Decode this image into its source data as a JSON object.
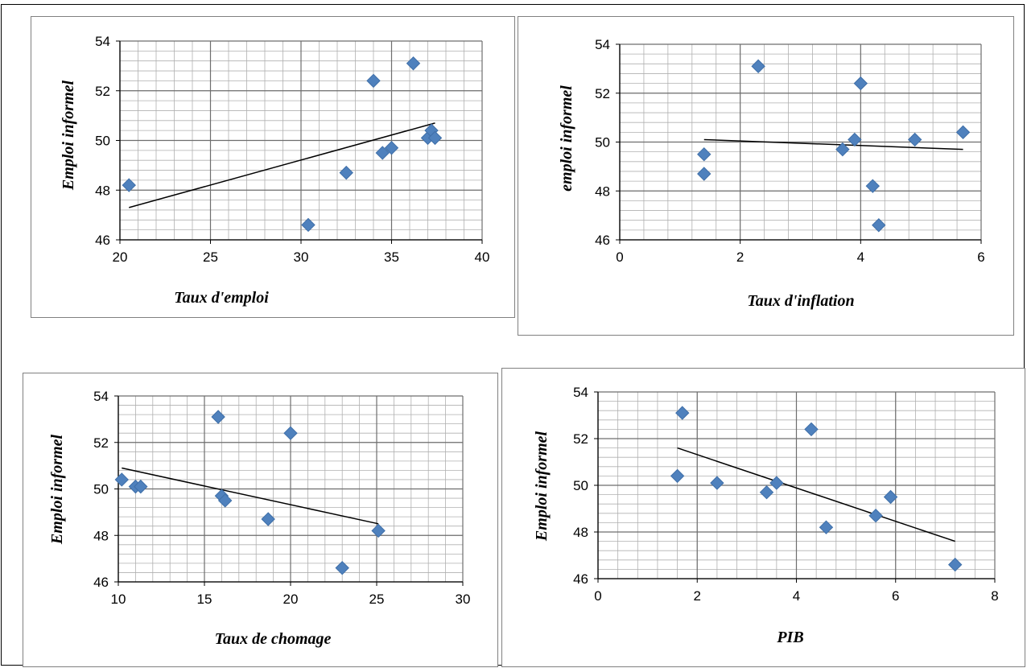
{
  "chart_data": [
    {
      "type": "scatter",
      "xlabel": "Taux d'emploi",
      "ylabel": "Emploi informel",
      "xlim": [
        20,
        40
      ],
      "ylim": [
        46,
        54
      ],
      "xticks": [
        20,
        25,
        30,
        35,
        40
      ],
      "yticks": [
        46,
        48,
        50,
        52,
        54
      ],
      "grid": true,
      "marker_color": "#4f81bd",
      "points": [
        [
          20.5,
          48.2
        ],
        [
          30.4,
          46.6
        ],
        [
          32.5,
          48.7
        ],
        [
          34.0,
          52.4
        ],
        [
          34.5,
          49.5
        ],
        [
          35.0,
          49.7
        ],
        [
          36.2,
          53.1
        ],
        [
          37.0,
          50.1
        ],
        [
          37.2,
          50.4
        ],
        [
          37.4,
          50.1
        ]
      ],
      "trendline": [
        [
          20.5,
          47.3
        ],
        [
          37.4,
          50.7
        ]
      ]
    },
    {
      "type": "scatter",
      "xlabel": "Taux d'inflation",
      "ylabel": "emploi informel",
      "xlim": [
        0,
        6
      ],
      "ylim": [
        46,
        54
      ],
      "xticks": [
        0,
        2,
        4,
        6
      ],
      "yticks": [
        46,
        48,
        50,
        52,
        54
      ],
      "grid": true,
      "marker_color": "#4f81bd",
      "points": [
        [
          1.4,
          49.5
        ],
        [
          1.4,
          48.7
        ],
        [
          2.3,
          53.1
        ],
        [
          3.7,
          49.7
        ],
        [
          3.9,
          50.1
        ],
        [
          4.0,
          52.4
        ],
        [
          4.2,
          48.2
        ],
        [
          4.3,
          46.6
        ],
        [
          4.9,
          50.1
        ],
        [
          5.7,
          50.4
        ]
      ],
      "trendline": [
        [
          1.4,
          50.1
        ],
        [
          5.7,
          49.7
        ]
      ]
    },
    {
      "type": "scatter",
      "xlabel": "Taux de chomage",
      "ylabel": "Emploi informel",
      "xlim": [
        10,
        30
      ],
      "ylim": [
        46,
        54
      ],
      "xticks": [
        10,
        15,
        20,
        25,
        30
      ],
      "yticks": [
        46,
        48,
        50,
        52,
        54
      ],
      "grid": true,
      "marker_color": "#4f81bd",
      "points": [
        [
          10.2,
          50.4
        ],
        [
          11.0,
          50.1
        ],
        [
          11.3,
          50.1
        ],
        [
          15.8,
          53.1
        ],
        [
          16.0,
          49.7
        ],
        [
          16.2,
          49.5
        ],
        [
          18.7,
          48.7
        ],
        [
          20.0,
          52.4
        ],
        [
          23.0,
          46.6
        ],
        [
          25.1,
          48.2
        ]
      ],
      "trendline": [
        [
          10.2,
          50.9
        ],
        [
          25.1,
          48.5
        ]
      ]
    },
    {
      "type": "scatter",
      "xlabel": "PIB",
      "ylabel": "Emploi informel",
      "xlim": [
        0,
        8
      ],
      "ylim": [
        46,
        54
      ],
      "xticks": [
        0,
        2,
        4,
        6,
        8
      ],
      "yticks": [
        46,
        48,
        50,
        52,
        54
      ],
      "grid": true,
      "marker_color": "#4f81bd",
      "points": [
        [
          1.6,
          50.4
        ],
        [
          1.7,
          53.1
        ],
        [
          2.4,
          50.1
        ],
        [
          3.4,
          49.7
        ],
        [
          3.6,
          50.1
        ],
        [
          4.3,
          52.4
        ],
        [
          4.6,
          48.2
        ],
        [
          5.6,
          48.7
        ],
        [
          5.9,
          49.5
        ],
        [
          7.2,
          46.6
        ]
      ],
      "trendline": [
        [
          1.6,
          51.6
        ],
        [
          7.2,
          47.6
        ]
      ]
    }
  ]
}
